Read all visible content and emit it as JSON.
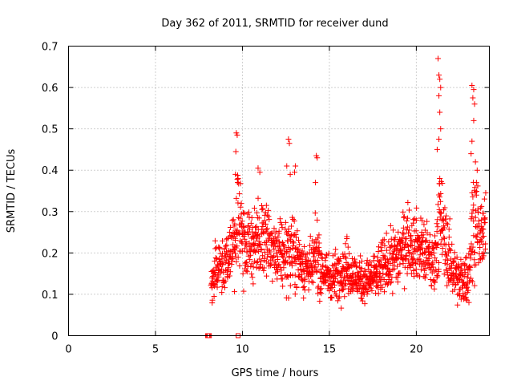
{
  "chart_data": {
    "type": "scatter",
    "title": "Day 362 of 2011, SRMTID for receiver dund",
    "xlabel": "GPS time / hours",
    "ylabel": "SRMTID / TECUs",
    "xlim": [
      0,
      24.2
    ],
    "ylim": [
      0,
      0.7
    ],
    "x_ticks": [
      0,
      5,
      10,
      15,
      20
    ],
    "y_ticks": [
      0,
      0.1,
      0.2,
      0.3,
      0.4,
      0.5,
      0.6,
      0.7
    ],
    "x_tick_labels": [
      "0",
      "5",
      "10",
      "15",
      "20"
    ],
    "y_tick_labels": [
      "0",
      "0.1",
      "0.2",
      "0.3",
      "0.4",
      "0.5",
      "0.6",
      "0.7"
    ],
    "grid": true,
    "marker": "+",
    "series": [
      {
        "name": "SRMTID",
        "color": "#ff0000",
        "envelope": {
          "x": [
            8.2,
            8.5,
            9.0,
            9.5,
            9.7,
            10.0,
            10.5,
            11.0,
            11.5,
            12.0,
            12.5,
            13.0,
            13.5,
            14.0,
            14.25,
            14.5,
            15.0,
            15.5,
            16.0,
            16.5,
            17.0,
            17.5,
            18.0,
            18.5,
            19.0,
            19.5,
            20.0,
            20.5,
            21.0,
            21.3,
            21.5,
            22.0,
            22.5,
            23.0,
            23.3,
            23.6,
            24.0
          ],
          "mean": [
            0.12,
            0.16,
            0.18,
            0.21,
            0.27,
            0.24,
            0.22,
            0.23,
            0.22,
            0.19,
            0.2,
            0.2,
            0.17,
            0.16,
            0.2,
            0.16,
            0.14,
            0.15,
            0.17,
            0.14,
            0.13,
            0.14,
            0.16,
            0.18,
            0.2,
            0.23,
            0.22,
            0.2,
            0.17,
            0.28,
            0.25,
            0.17,
            0.13,
            0.14,
            0.3,
            0.24,
            0.25
          ],
          "spread": [
            0.04,
            0.05,
            0.06,
            0.07,
            0.1,
            0.08,
            0.07,
            0.08,
            0.07,
            0.06,
            0.08,
            0.07,
            0.06,
            0.05,
            0.08,
            0.06,
            0.05,
            0.05,
            0.06,
            0.05,
            0.04,
            0.05,
            0.06,
            0.06,
            0.07,
            0.07,
            0.07,
            0.07,
            0.06,
            0.12,
            0.1,
            0.06,
            0.05,
            0.06,
            0.12,
            0.08,
            0.07
          ]
        },
        "n_points": 1500,
        "peaks": [
          {
            "x": 9.65,
            "y": 0.49
          },
          {
            "x": 9.7,
            "y": 0.485
          },
          {
            "x": 9.62,
            "y": 0.445
          },
          {
            "x": 9.6,
            "y": 0.39
          },
          {
            "x": 9.75,
            "y": 0.38
          },
          {
            "x": 10.9,
            "y": 0.405
          },
          {
            "x": 11.0,
            "y": 0.395
          },
          {
            "x": 12.65,
            "y": 0.475
          },
          {
            "x": 12.7,
            "y": 0.465
          },
          {
            "x": 12.55,
            "y": 0.41
          },
          {
            "x": 12.75,
            "y": 0.39
          },
          {
            "x": 13.05,
            "y": 0.41
          },
          {
            "x": 13.0,
            "y": 0.395
          },
          {
            "x": 14.25,
            "y": 0.435
          },
          {
            "x": 14.3,
            "y": 0.43
          },
          {
            "x": 14.2,
            "y": 0.37
          },
          {
            "x": 21.25,
            "y": 0.67
          },
          {
            "x": 21.3,
            "y": 0.63
          },
          {
            "x": 21.35,
            "y": 0.62
          },
          {
            "x": 21.4,
            "y": 0.6
          },
          {
            "x": 21.3,
            "y": 0.58
          },
          {
            "x": 21.35,
            "y": 0.54
          },
          {
            "x": 21.4,
            "y": 0.5
          },
          {
            "x": 21.3,
            "y": 0.475
          },
          {
            "x": 21.2,
            "y": 0.45
          },
          {
            "x": 21.35,
            "y": 0.38
          },
          {
            "x": 23.2,
            "y": 0.605
          },
          {
            "x": 23.3,
            "y": 0.595
          },
          {
            "x": 23.25,
            "y": 0.575
          },
          {
            "x": 23.35,
            "y": 0.56
          },
          {
            "x": 23.3,
            "y": 0.52
          },
          {
            "x": 23.2,
            "y": 0.47
          },
          {
            "x": 23.15,
            "y": 0.44
          },
          {
            "x": 23.4,
            "y": 0.42
          },
          {
            "x": 23.5,
            "y": 0.4
          }
        ],
        "zero_points": [
          {
            "x": 8.0,
            "y": 0.0
          },
          {
            "x": 8.05,
            "y": 0.0
          },
          {
            "x": 8.1,
            "y": 0.0
          },
          {
            "x": 9.75,
            "y": 0.0
          }
        ]
      }
    ]
  }
}
